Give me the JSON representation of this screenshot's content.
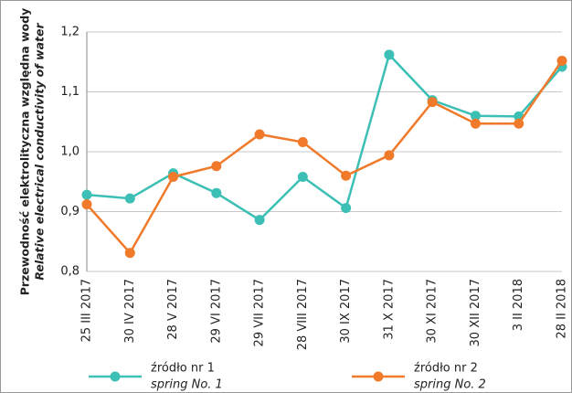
{
  "chart_data": {
    "type": "line",
    "y_label": "Przewodność elektrolityczna względna wody",
    "y_label_en": "Relative electrical conductivity of water",
    "categories": [
      "25 III 2017",
      "30 IV 2017",
      "28 V 2017",
      "29 VI 2017",
      "29 VII 2017",
      "28 VIII 2017",
      "30 IX 2017",
      "31 X 2017",
      "30 XI 2017",
      "30 XII 2017",
      "3 II 2018",
      "28 II 2018"
    ],
    "series": [
      {
        "name": "źródło nr 1",
        "name_en": "spring No. 1",
        "color": "#3cbfb4",
        "values": [
          0.928,
          0.922,
          0.964,
          0.931,
          0.886,
          0.958,
          0.906,
          1.162,
          1.086,
          1.06,
          1.059,
          1.142
        ]
      },
      {
        "name": "źródło nr 2",
        "name_en": "spring No. 2",
        "color": "#f07a2a",
        "values": [
          0.912,
          0.831,
          0.958,
          0.976,
          1.029,
          1.016,
          0.96,
          0.994,
          1.083,
          1.047,
          1.047,
          1.152
        ]
      }
    ],
    "ylim": [
      0.8,
      1.2
    ],
    "yticks": [
      {
        "value": 0.8,
        "label": "0,8"
      },
      {
        "value": 0.9,
        "label": "0,9"
      },
      {
        "value": 1.0,
        "label": "1,0"
      },
      {
        "value": 1.1,
        "label": "1,1"
      },
      {
        "value": 1.2,
        "label": "1,2"
      }
    ],
    "grid": true
  }
}
